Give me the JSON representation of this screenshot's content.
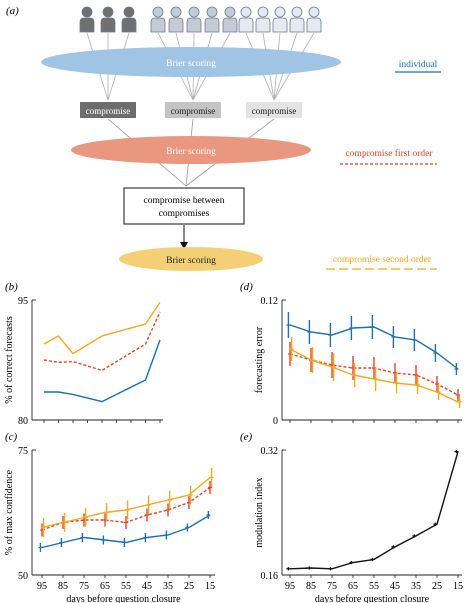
{
  "diagram": {
    "panel_label": "(a)",
    "brier_label": "Brier scoring",
    "compromise_label": "compromise",
    "between_label_line1": "compromise between",
    "between_label_line2": "compromises",
    "legend": [
      {
        "label": "individual",
        "color": "#1f6fb2",
        "style": "solid"
      },
      {
        "label": "compromise first order",
        "color": "#e0452b",
        "style": "dashed"
      },
      {
        "label": "compromise second order",
        "color": "#f2a81d",
        "style": "longdash"
      }
    ],
    "colors": {
      "brier1": "#9fc4e4",
      "brier2": "#e9977f",
      "brier3": "#f5cf76",
      "person_dark": "#707070",
      "person_mid": "#c5cbd6",
      "person_light": "#e6e9ef",
      "box_dark": "#6d6d6d",
      "box_mid": "#c4c4c4",
      "box_light": "#e3e3e3"
    }
  },
  "x_axis_label": "days before question closure",
  "x_ticks": [
    "95",
    "85",
    "75",
    "65",
    "55",
    "45",
    "35",
    "25",
    "15"
  ],
  "chart_data": [
    {
      "panel": "(b)",
      "type": "line",
      "ylabel": "% of correct forecasts",
      "ylim": [
        80,
        95
      ],
      "yticks": [
        "95",
        "80"
      ],
      "x": [
        95,
        85,
        75,
        65,
        55,
        45,
        35,
        25,
        15
      ],
      "series": [
        {
          "name": "individual",
          "values": [
            83.5,
            83.5,
            83.2,
            null,
            82.3,
            null,
            null,
            85,
            90
          ],
          "color": "#1f6fb2"
        },
        {
          "name": "compromise first order",
          "values": [
            87.5,
            87.2,
            87.3,
            null,
            86.2,
            null,
            null,
            89.5,
            93.5
          ],
          "color": "#e0452b"
        },
        {
          "name": "compromise second order",
          "values": [
            89.5,
            90.5,
            88.3,
            null,
            90.5,
            null,
            null,
            92,
            94.7
          ],
          "color": "#f2a81d"
        }
      ]
    },
    {
      "panel": "(d)",
      "type": "line",
      "ylabel": "forecasting error",
      "ylim": [
        0,
        0.12
      ],
      "yticks": [
        "0.12",
        "0"
      ],
      "x": [
        95,
        85,
        75,
        65,
        55,
        45,
        35,
        25,
        15
      ],
      "series": [
        {
          "name": "individual",
          "values": [
            0.095,
            0.088,
            0.085,
            0.092,
            0.093,
            0.083,
            0.08,
            0.067,
            0.051
          ],
          "err": [
            0.013,
            0.012,
            0.012,
            0.012,
            0.012,
            0.011,
            0.011,
            0.009,
            0.006
          ],
          "color": "#1f6fb2"
        },
        {
          "name": "compromise first order",
          "values": [
            0.066,
            0.06,
            0.055,
            0.052,
            0.052,
            0.047,
            0.045,
            0.036,
            0.025
          ],
          "err": [
            0.012,
            0.012,
            0.013,
            0.012,
            0.011,
            0.01,
            0.01,
            0.008,
            0.006
          ],
          "color": "#e0452b"
        },
        {
          "name": "compromise second order",
          "values": [
            0.071,
            0.06,
            0.053,
            0.045,
            0.041,
            0.037,
            0.035,
            0.028,
            0.018
          ],
          "err": [
            0.012,
            0.013,
            0.014,
            0.012,
            0.012,
            0.01,
            0.009,
            0.008,
            0.006
          ],
          "color": "#f2a81d"
        }
      ]
    },
    {
      "panel": "(c)",
      "type": "line",
      "ylabel": "% of max confidence",
      "ylim": [
        50,
        75
      ],
      "yticks": [
        "75",
        "50"
      ],
      "x": [
        95,
        85,
        75,
        65,
        55,
        45,
        35,
        25,
        15
      ],
      "series": [
        {
          "name": "individual",
          "values": [
            55.5,
            56.5,
            57.5,
            57,
            56.5,
            57.5,
            58,
            59.5,
            62
          ],
          "err": [
            0.9,
            0.9,
            0.9,
            0.9,
            0.9,
            0.9,
            0.9,
            0.8,
            0.8
          ],
          "color": "#1f6fb2"
        },
        {
          "name": "compromise first order",
          "values": [
            59,
            60.5,
            61,
            61,
            60.5,
            62,
            63,
            64.5,
            67.5
          ],
          "err": [
            1.3,
            1.3,
            1.3,
            1.3,
            1.3,
            1.3,
            1.3,
            1.3,
            1.3
          ],
          "color": "#e0452b"
        },
        {
          "name": "compromise second order",
          "values": [
            59.5,
            60.5,
            61.5,
            62.5,
            63,
            64,
            65,
            66,
            69.5
          ],
          "err": [
            1.9,
            1.9,
            1.9,
            1.9,
            1.9,
            1.9,
            1.9,
            1.9,
            1.9
          ],
          "color": "#f2a81d"
        }
      ]
    },
    {
      "panel": "(e)",
      "type": "line",
      "ylabel": "modulation index",
      "ylim": [
        0.16,
        0.32
      ],
      "yticks": [
        "0.32",
        "0.16"
      ],
      "x": [
        95,
        85,
        75,
        65,
        55,
        45,
        35,
        25,
        15
      ],
      "series": [
        {
          "name": "",
          "values": [
            0.168,
            0.169,
            0.168,
            0.176,
            0.18,
            0.196,
            0.21,
            0.225,
            0.318
          ],
          "err": [
            0.002,
            0.002,
            0.002,
            0.002,
            0.002,
            0.002,
            0.002,
            0.002,
            0.002
          ],
          "color": "#111111"
        }
      ]
    }
  ]
}
